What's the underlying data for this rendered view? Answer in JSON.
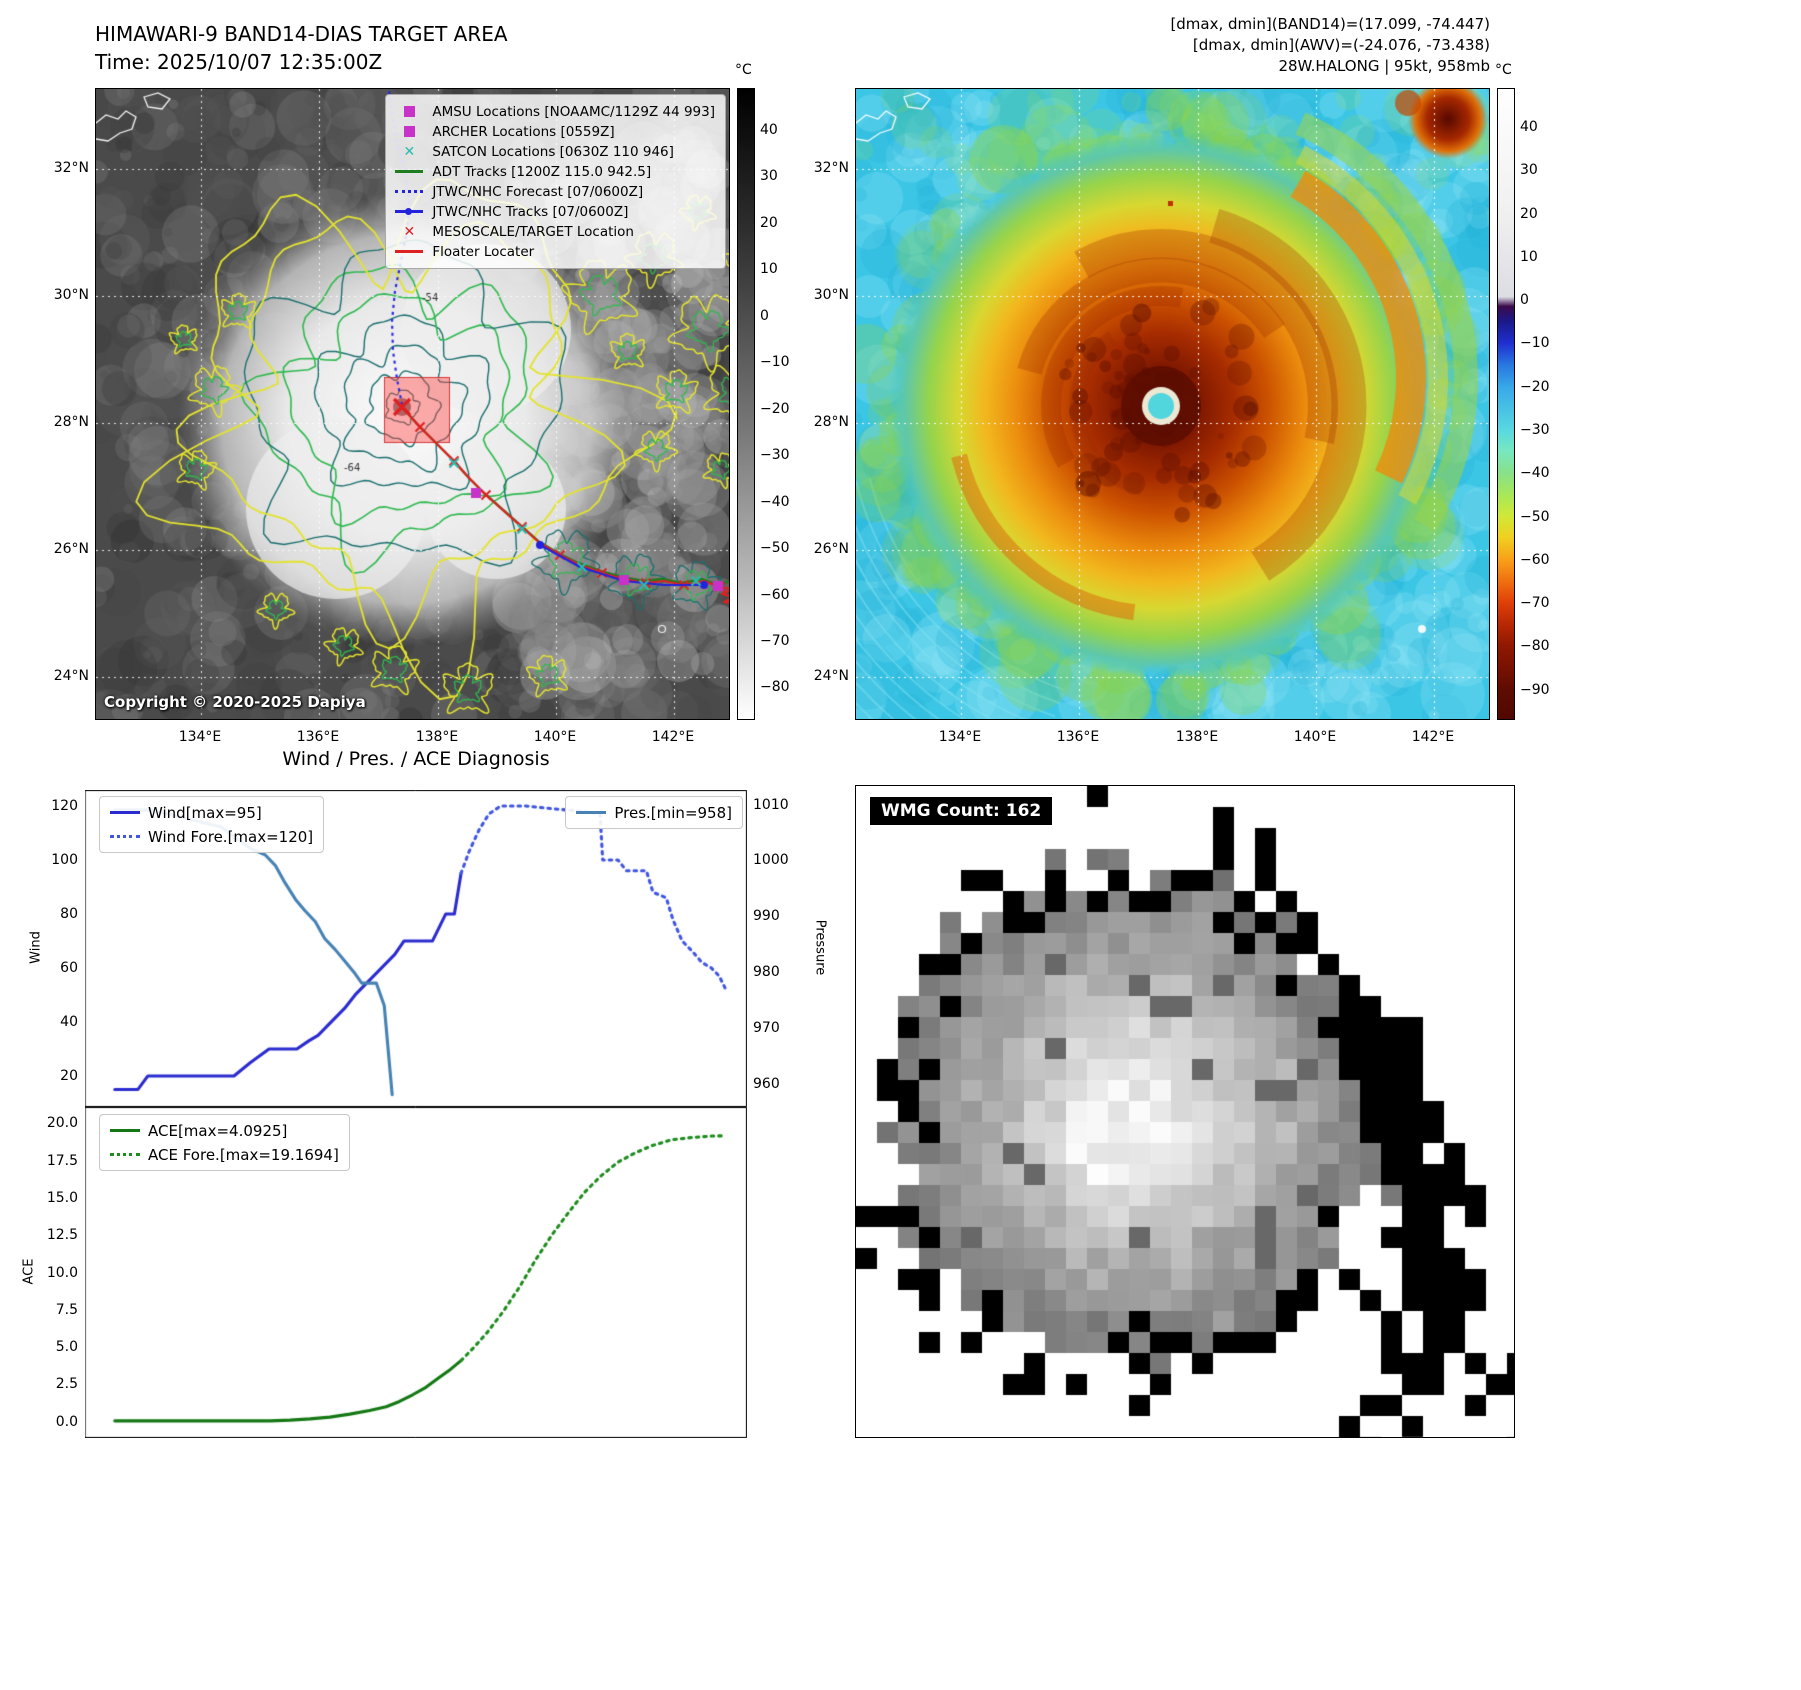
{
  "header": {
    "title": "HIMAWARI-9 BAND14-DIAS TARGET AREA",
    "time": "Time: 2025/10/07 12:35:00Z"
  },
  "annotations": {
    "line1": "[dmax, dmin](BAND14)=(17.099, -74.447)",
    "line2": "[dmax, dmin](AWV)=(-24.076, -73.438)",
    "line3": "28W.HALONG | 95kt, 958mb"
  },
  "band14_map": {
    "copyright": "Copyright © 2020-2025 Dapiya",
    "lat_ticks": [
      "32°N",
      "30°N",
      "28°N",
      "26°N",
      "24°N"
    ],
    "lon_ticks": [
      "134°E",
      "136°E",
      "138°E",
      "140°E",
      "142°E"
    ],
    "contour_labels": [
      "-54",
      "-64"
    ],
    "colorbar": {
      "unit": "°C",
      "ticks": [
        "40",
        "30",
        "20",
        "10",
        "0",
        "−10",
        "−20",
        "−30",
        "−40",
        "−50",
        "−60",
        "−70",
        "−80"
      ]
    },
    "legend": [
      {
        "label": "AMSU Locations [NOAAMC/1129Z 44 993]",
        "marker": "square",
        "color": "#c832c8"
      },
      {
        "label": "ARCHER Locations [0559Z]",
        "marker": "square",
        "color": "#c832c8"
      },
      {
        "label": "SATCON Locations [0630Z 110 946]",
        "marker": "x",
        "color": "#28bdb0"
      },
      {
        "label": "ADT Tracks [1200Z 115.0 942.5]",
        "marker": "line",
        "color": "#1e7d1e"
      },
      {
        "label": "JTWC/NHC Forecast [07/0600Z]",
        "marker": "dotted",
        "color": "#2323dd"
      },
      {
        "label": "JTWC/NHC Tracks [07/0600Z]",
        "marker": "line-dot",
        "color": "#2323dd"
      },
      {
        "label": "MESOSCALE/TARGET Location",
        "marker": "x",
        "color": "#dd2020"
      },
      {
        "label": "Floater Locater",
        "marker": "line",
        "color": "#dd2020"
      }
    ]
  },
  "awv_map": {
    "lat_ticks": [
      "32°N",
      "30°N",
      "28°N",
      "26°N",
      "24°N"
    ],
    "lon_ticks": [
      "134°E",
      "136°E",
      "138°E",
      "140°E",
      "142°E"
    ],
    "colorbar": {
      "unit": "°C",
      "ticks": [
        "40",
        "30",
        "20",
        "10",
        "0",
        "−10",
        "−20",
        "−30",
        "−40",
        "−50",
        "−60",
        "−70",
        "−80",
        "−90"
      ]
    }
  },
  "diagnosis": {
    "title": "Wind / Pres. / ACE Diagnosis"
  },
  "wmg": {
    "label": "WMG Count: 162"
  },
  "chart_data": [
    {
      "type": "line",
      "title": "Wind / Pressure diagnosis",
      "ylabel_left": "Wind",
      "ylabel_right": "Pressure",
      "ylim_left": [
        8.5,
        125.9
      ],
      "yticks_left": [
        20,
        40,
        60,
        80,
        100,
        120
      ],
      "ylim_right": [
        955.8,
        1012.6
      ],
      "yticks_right": [
        960,
        970,
        980,
        990,
        1000,
        1010
      ],
      "grid": false,
      "legend_position": "upper left / upper right",
      "series": [
        {
          "name": "Wind[max=95]",
          "axis": "left",
          "style": "solid",
          "color": "#2b2bd0",
          "points": [
            [
              0.045,
              15
            ],
            [
              0.08,
              15
            ],
            [
              0.095,
              20
            ],
            [
              0.225,
              20
            ],
            [
              0.25,
              25
            ],
            [
              0.278,
              30
            ],
            [
              0.32,
              30
            ],
            [
              0.338,
              33
            ],
            [
              0.352,
              35
            ],
            [
              0.372,
              40
            ],
            [
              0.392,
              45
            ],
            [
              0.408,
              50
            ],
            [
              0.428,
              55
            ],
            [
              0.448,
              60
            ],
            [
              0.468,
              65
            ],
            [
              0.482,
              70
            ],
            [
              0.525,
              70
            ],
            [
              0.545,
              80
            ],
            [
              0.558,
              80
            ],
            [
              0.568,
              95
            ]
          ]
        },
        {
          "name": "Wind Fore.[max=120]",
          "axis": "left",
          "style": "dotted",
          "color": "#4055e2",
          "points": [
            [
              0.568,
              95
            ],
            [
              0.58,
              103
            ],
            [
              0.595,
              111
            ],
            [
              0.61,
              117
            ],
            [
              0.628,
              120
            ],
            [
              0.665,
              120
            ],
            [
              0.705,
              119
            ],
            [
              0.75,
              118
            ],
            [
              0.778,
              117
            ],
            [
              0.782,
              100
            ],
            [
              0.805,
              100
            ],
            [
              0.818,
              96
            ],
            [
              0.848,
              96
            ],
            [
              0.858,
              88
            ],
            [
              0.878,
              86
            ],
            [
              0.888,
              78
            ],
            [
              0.902,
              70
            ],
            [
              0.918,
              66
            ],
            [
              0.932,
              62
            ],
            [
              0.946,
              60
            ],
            [
              0.958,
              57
            ],
            [
              0.968,
              52
            ]
          ]
        },
        {
          "name": "Pres.[min=958]",
          "axis": "right",
          "style": "solid",
          "color": "#4682b4",
          "points": [
            [
              0.045,
              1009
            ],
            [
              0.1,
              1009
            ],
            [
              0.135,
              1008
            ],
            [
              0.17,
              1007
            ],
            [
              0.205,
              1006
            ],
            [
              0.228,
              1004
            ],
            [
              0.252,
              1002
            ],
            [
              0.272,
              1001
            ],
            [
              0.288,
              999
            ],
            [
              0.302,
              996
            ],
            [
              0.318,
              993
            ],
            [
              0.332,
              991
            ],
            [
              0.348,
              989
            ],
            [
              0.362,
              986
            ],
            [
              0.378,
              984
            ],
            [
              0.392,
              982
            ],
            [
              0.406,
              980
            ],
            [
              0.418,
              978
            ],
            [
              0.44,
              978
            ],
            [
              0.452,
              974
            ],
            [
              0.458,
              966
            ],
            [
              0.464,
              958
            ]
          ]
        }
      ]
    },
    {
      "type": "line",
      "title": "ACE diagnosis",
      "ylabel_left": "ACE",
      "ylim_left": [
        -1.1,
        21.1
      ],
      "yticks_left": [
        "0.0",
        "2.5",
        "5.0",
        "7.5",
        "10.0",
        "12.5",
        "15.0",
        "17.5",
        "20.0"
      ],
      "grid": false,
      "legend_position": "upper left",
      "series": [
        {
          "name": "ACE[max=4.0925]",
          "axis": "left",
          "style": "solid",
          "color": "#137813",
          "points": [
            [
              0.045,
              0.05
            ],
            [
              0.28,
              0.05
            ],
            [
              0.31,
              0.1
            ],
            [
              0.34,
              0.18
            ],
            [
              0.37,
              0.3
            ],
            [
              0.4,
              0.5
            ],
            [
              0.43,
              0.75
            ],
            [
              0.455,
              1.0
            ],
            [
              0.475,
              1.35
            ],
            [
              0.495,
              1.8
            ],
            [
              0.515,
              2.3
            ],
            [
              0.535,
              2.95
            ],
            [
              0.552,
              3.5
            ],
            [
              0.568,
              4.09
            ]
          ]
        },
        {
          "name": "ACE Fore.[max=19.1694]",
          "axis": "left",
          "style": "dotted",
          "color": "#1e8c1e",
          "points": [
            [
              0.568,
              4.09
            ],
            [
              0.588,
              5.0
            ],
            [
              0.608,
              6.0
            ],
            [
              0.632,
              7.4
            ],
            [
              0.656,
              9.0
            ],
            [
              0.68,
              10.8
            ],
            [
              0.705,
              12.5
            ],
            [
              0.73,
              14.0
            ],
            [
              0.755,
              15.4
            ],
            [
              0.78,
              16.5
            ],
            [
              0.805,
              17.4
            ],
            [
              0.83,
              18.0
            ],
            [
              0.856,
              18.5
            ],
            [
              0.886,
              18.9
            ],
            [
              0.916,
              19.05
            ],
            [
              0.946,
              19.15
            ],
            [
              0.966,
              19.17
            ]
          ]
        }
      ]
    }
  ]
}
